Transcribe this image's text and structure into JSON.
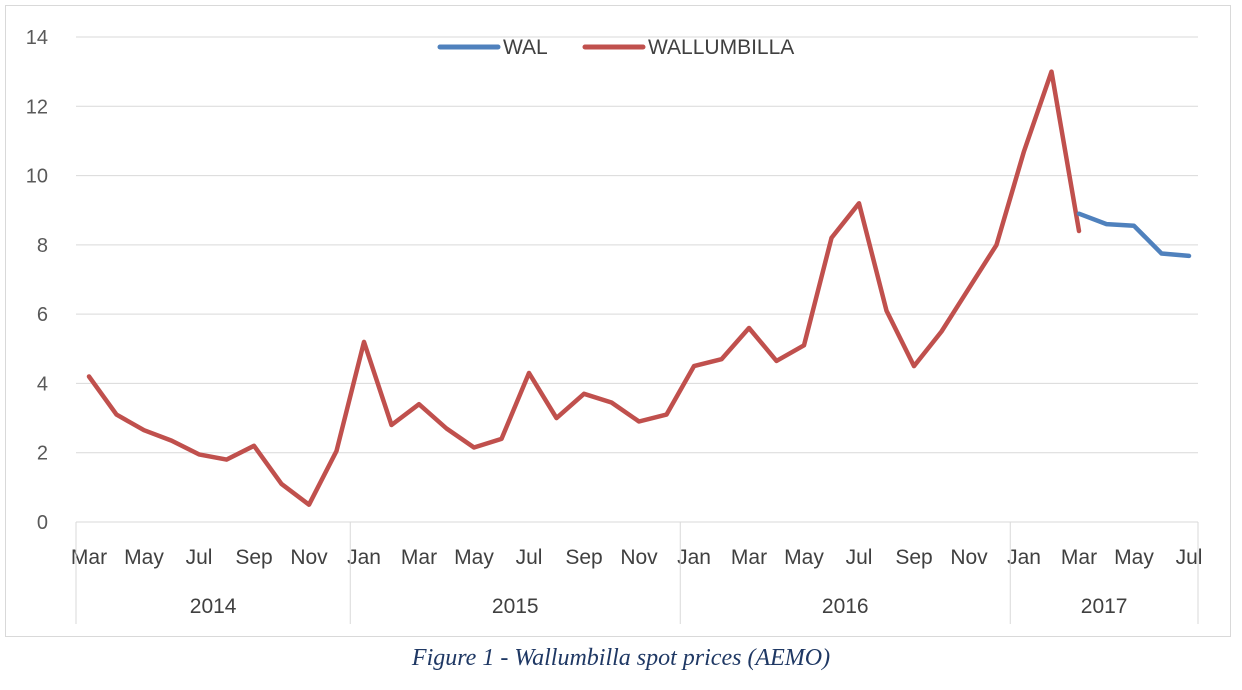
{
  "chart_data": {
    "type": "line",
    "title": "",
    "ylim": [
      0,
      14
    ],
    "y_ticks": [
      0,
      2,
      4,
      6,
      8,
      10,
      12,
      14
    ],
    "grid": true,
    "legend_position": "top-center",
    "month_labels": [
      "Mar",
      "May",
      "Jul",
      "Sep",
      "Nov",
      "Jan",
      "Mar",
      "May",
      "Jul",
      "Sep",
      "Nov",
      "Jan",
      "Mar",
      "May",
      "Jul",
      "Sep",
      "Nov",
      "Jan",
      "Mar",
      "May",
      "Jul"
    ],
    "years": [
      {
        "label": "2014",
        "start_month": 0,
        "end_month": 9
      },
      {
        "label": "2015",
        "start_month": 10,
        "end_month": 21
      },
      {
        "label": "2016",
        "start_month": 22,
        "end_month": 33
      },
      {
        "label": "2017",
        "start_month": 34,
        "end_month": 40
      }
    ],
    "series": [
      {
        "name": "WAL",
        "color": "#4f81bd",
        "start_index": 36,
        "values": [
          8.9,
          8.6,
          8.55,
          7.75,
          7.68
        ]
      },
      {
        "name": "WALLUMBILLA",
        "color": "#c0504d",
        "start_index": 0,
        "values": [
          4.2,
          3.1,
          2.65,
          2.35,
          1.95,
          1.8,
          2.2,
          1.1,
          0.5,
          2.05,
          5.2,
          2.8,
          3.4,
          2.7,
          2.15,
          2.4,
          4.3,
          3.0,
          3.7,
          3.45,
          2.9,
          3.1,
          4.5,
          4.7,
          5.6,
          4.65,
          5.1,
          8.2,
          9.2,
          6.1,
          4.5,
          5.5,
          6.75,
          8.0,
          10.7,
          13.0,
          8.4
        ]
      }
    ]
  },
  "caption": "Figure 1 - Wallumbilla spot prices (AEMO)"
}
